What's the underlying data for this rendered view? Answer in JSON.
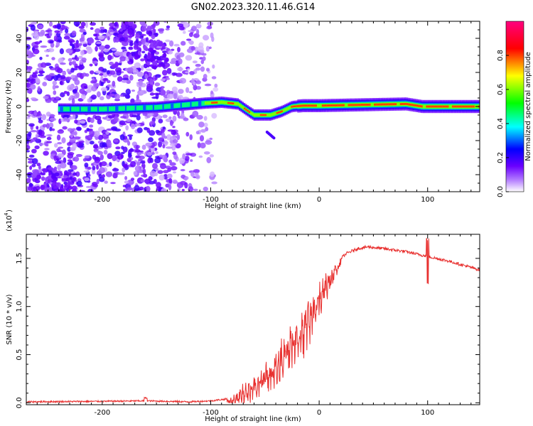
{
  "title": "GN02.2023.320.11.46.G14",
  "chart_data": [
    {
      "type": "heatmap",
      "xlabel": "Height of straight line (km)",
      "ylabel": "Frequency (Hz)",
      "xlim": [
        -270,
        148
      ],
      "ylim": [
        -50,
        50
      ],
      "x_ticks": [
        -200,
        -100,
        0,
        100
      ],
      "x_tick_labels": [
        "-200",
        "-100",
        "0",
        "100"
      ],
      "y_ticks": [
        -40,
        -20,
        0,
        20,
        40
      ],
      "y_tick_labels": [
        "-40",
        "-20",
        "0",
        "20",
        "40"
      ],
      "colorbar": {
        "label": "Normalized spectral amplitude",
        "range": [
          0,
          1
        ],
        "ticks": [
          0,
          0.2,
          0.4,
          0.6,
          0.8
        ],
        "tick_labels": [
          "0.0",
          "0.2",
          "0.4",
          "0.6",
          "0.8"
        ],
        "colors": [
          "#ffffff",
          "#8000ff",
          "#0000ff",
          "#00ffff",
          "#00ff00",
          "#ffff00",
          "#ff0000",
          "#ff0080"
        ]
      },
      "ridge": {
        "x": [
          -240,
          -200,
          -150,
          -105,
          -90,
          -75,
          -65,
          -60,
          -55,
          -45,
          -35,
          -25,
          -15,
          0,
          40,
          80,
          95,
          110,
          148
        ],
        "freq": [
          -1.5,
          -1.5,
          -0.5,
          2,
          2.5,
          1.5,
          -3,
          -5,
          -5,
          -5,
          -3,
          0,
          0.5,
          0.5,
          1,
          1.5,
          0,
          0,
          0
        ]
      }
    },
    {
      "type": "line",
      "xlabel": "Height of straight line (km)",
      "ylabel": "SNR (10 * v/v)",
      "y_multiplier_label": "(x10",
      "y_multiplier_exp": "4",
      "xlim": [
        -270,
        148
      ],
      "ylim": [
        -0.02,
        1.75
      ],
      "x_ticks": [
        -200,
        -100,
        0,
        100
      ],
      "x_tick_labels": [
        "-200",
        "-100",
        "0",
        "100"
      ],
      "y_ticks": [
        0,
        0.5,
        1.0,
        1.5
      ],
      "y_tick_labels": [
        "0.0",
        "0.5",
        "1.0",
        "1.5"
      ],
      "color": "#e8302f",
      "series": [
        {
          "x": [
            -270,
            -200,
            -160,
            -120,
            -100,
            -85,
            -75,
            -65,
            -55,
            -45,
            -35,
            -25,
            -15,
            -5,
            5,
            15,
            25,
            35,
            45,
            60,
            80,
            100,
            120,
            148
          ],
          "y": [
            0.01,
            0.015,
            0.02,
            0.01,
            0.02,
            0.04,
            0.12,
            0.2,
            0.3,
            0.45,
            0.6,
            0.75,
            0.9,
            1.1,
            1.3,
            1.45,
            1.55,
            1.6,
            1.62,
            1.6,
            1.57,
            1.52,
            1.47,
            1.38
          ]
        }
      ]
    }
  ]
}
